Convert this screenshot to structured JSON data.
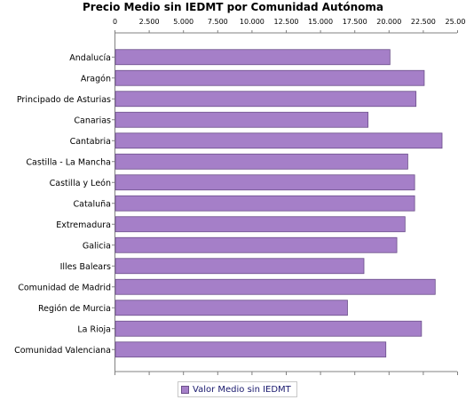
{
  "chart_data": {
    "type": "bar",
    "orientation": "horizontal",
    "title": "Precio Medio sin IEDMT por Comunidad Autónoma",
    "xlabel": "",
    "ylabel": "",
    "xlim": [
      0,
      25000
    ],
    "x_ticks": [
      0,
      2500,
      5000,
      7500,
      10000,
      12500,
      15000,
      17500,
      20000,
      22500,
      25000
    ],
    "x_tick_labels": [
      "0",
      "2.500",
      "5.000",
      "7.500",
      "10.000",
      "12.500",
      "15.000",
      "17.500",
      "20.000",
      "22.500",
      "25.000"
    ],
    "categories": [
      "Andalucía",
      "Aragón",
      "Principado de Asturias",
      "Canarias",
      "Cantabria",
      "Castilla - La Mancha",
      "Castilla y León",
      "Cataluña",
      "Extremadura",
      "Galicia",
      "Illes Balears",
      "Comunidad de Madrid",
      "Región de Murcia",
      "La Rioja",
      "Comunidad Valenciana"
    ],
    "series": [
      {
        "name": "Valor Medio sin IEDMT",
        "color": "#a57fc8",
        "values": [
          20100,
          22600,
          22000,
          18500,
          23900,
          21400,
          21900,
          21900,
          21200,
          20600,
          18200,
          23400,
          17000,
          22400,
          19800
        ]
      }
    ],
    "legend": "bottom-center",
    "grid": false
  }
}
